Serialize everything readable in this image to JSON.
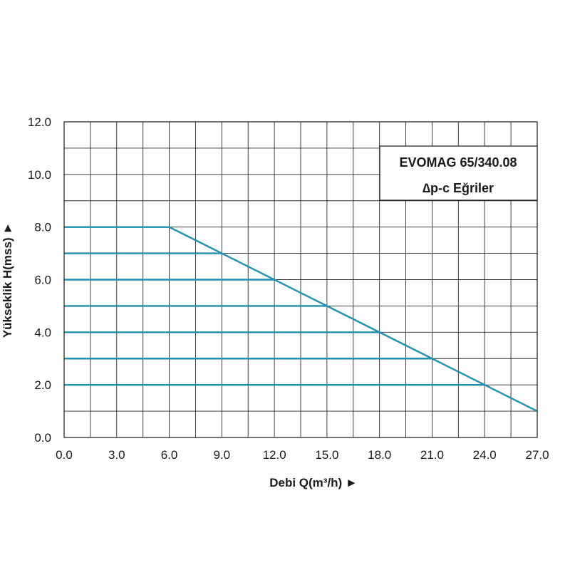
{
  "chart_data": {
    "type": "line",
    "title": "",
    "xlabel": "Debi Q(m³/h) ►",
    "ylabel": "Yükseklik H(mss) ►",
    "xlim": [
      0,
      27
    ],
    "ylim": [
      0,
      12
    ],
    "x_ticks": [
      "0.0",
      "3.0",
      "6.0",
      "9.0",
      "12.0",
      "15.0",
      "18.0",
      "21.0",
      "24.0",
      "27.0"
    ],
    "y_ticks": [
      "0.0",
      "2.0",
      "4.0",
      "6.0",
      "8.0",
      "10.0",
      "12.0"
    ],
    "x_grid_step": 1.5,
    "y_grid_step": 1.0,
    "grid": true,
    "legend": {
      "position": "top-right",
      "line1": "EVOMAG 65/340.08",
      "line2": "∆p-c Eğriler"
    },
    "line_color": "#1f8fb3",
    "series": [
      {
        "x": [
          0,
          6,
          27
        ],
        "y": [
          8,
          8,
          1
        ]
      },
      {
        "x": [
          0,
          9
        ],
        "y": [
          7,
          7
        ]
      },
      {
        "x": [
          0,
          12
        ],
        "y": [
          6,
          6
        ]
      },
      {
        "x": [
          0,
          15
        ],
        "y": [
          5,
          5
        ]
      },
      {
        "x": [
          0,
          18
        ],
        "y": [
          4,
          4
        ]
      },
      {
        "x": [
          0,
          21
        ],
        "y": [
          3,
          3
        ]
      },
      {
        "x": [
          0,
          24
        ],
        "y": [
          2,
          2
        ]
      }
    ]
  }
}
